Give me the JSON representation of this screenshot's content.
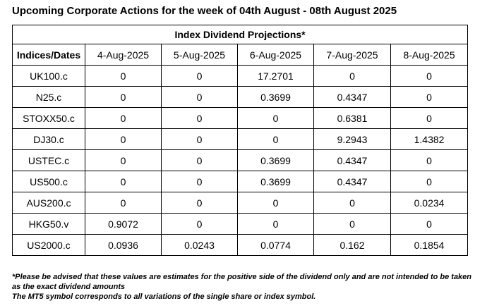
{
  "title": "Upcoming Corporate Actions for the week of 04th August - 08th August 2025",
  "table": {
    "caption": "Index Dividend Projections*",
    "row_header": "Indices/Dates",
    "dates": [
      "4-Aug-2025",
      "5-Aug-2025",
      "6-Aug-2025",
      "7-Aug-2025",
      "8-Aug-2025"
    ],
    "rows": [
      {
        "symbol": "UK100.c",
        "values": [
          "0",
          "0",
          "17.2701",
          "0",
          "0"
        ]
      },
      {
        "symbol": "N25.c",
        "values": [
          "0",
          "0",
          "0.3699",
          "0.4347",
          "0"
        ]
      },
      {
        "symbol": "STOXX50.c",
        "values": [
          "0",
          "0",
          "0",
          "0.6381",
          "0"
        ]
      },
      {
        "symbol": "DJ30.c",
        "values": [
          "0",
          "0",
          "0",
          "9.2943",
          "1.4382"
        ]
      },
      {
        "symbol": "USTEC.c",
        "values": [
          "0",
          "0",
          "0.3699",
          "0.4347",
          "0"
        ]
      },
      {
        "symbol": "US500.c",
        "values": [
          "0",
          "0",
          "0.3699",
          "0.4347",
          "0"
        ]
      },
      {
        "symbol": "AUS200.c",
        "values": [
          "0",
          "0",
          "0",
          "0",
          "0.0234"
        ]
      },
      {
        "symbol": "HKG50.v",
        "values": [
          "0.9072",
          "0",
          "0",
          "0",
          "0"
        ]
      },
      {
        "symbol": "US2000.c",
        "values": [
          "0.0936",
          "0.0243",
          "0.0774",
          "0.162",
          "0.1854"
        ]
      }
    ]
  },
  "footnotes": [
    "*Please be advised that these values are estimates for the positive side of the dividend only and are not intended to be taken as the exact dividend amounts",
    "The MT5 symbol corresponds to all variations of the single share or index symbol."
  ]
}
